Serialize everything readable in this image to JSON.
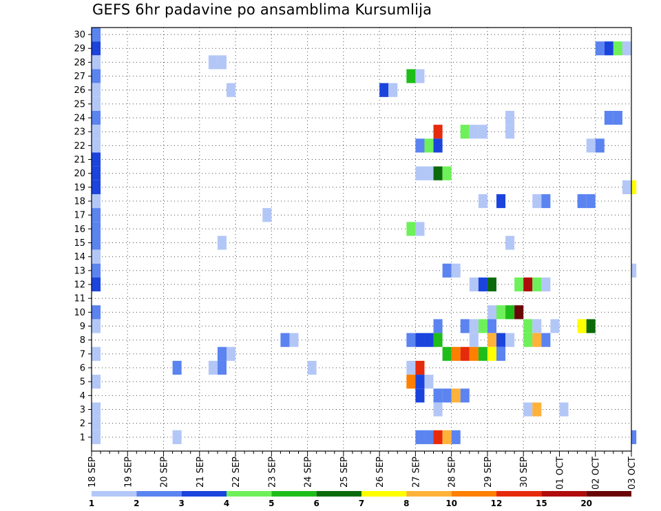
{
  "chart_data": {
    "type": "heatmap",
    "title": "GEFS 6hr padavine po ansamblima Kursumlija",
    "xlabel": "",
    "ylabel": "",
    "ylim": [
      0,
      30
    ],
    "y_ticks": [
      1,
      2,
      3,
      4,
      5,
      6,
      7,
      8,
      9,
      10,
      11,
      12,
      13,
      14,
      15,
      16,
      17,
      18,
      19,
      20,
      21,
      22,
      23,
      24,
      25,
      26,
      27,
      28,
      29,
      30
    ],
    "x_ticks": [
      "18 SEP",
      "19 SEP",
      "20 SEP",
      "21 SEP",
      "22 SEP",
      "23 SEP",
      "24 SEP",
      "25 SEP",
      "26 SEP",
      "27 SEP",
      "28 SEP",
      "29 SEP",
      "30 SEP",
      "01 OCT",
      "02 OCT",
      "03 OCT"
    ],
    "x_unit": "6-hour step from 18 SEP 00Z",
    "x_range": [
      0,
      60
    ],
    "grid": true,
    "legend": {
      "position": "bottom",
      "labels": [
        "1",
        "2",
        "3",
        "4",
        "5",
        "6",
        "7",
        "8",
        "10",
        "12",
        "15",
        "20"
      ],
      "colors": [
        "#b3c7f7",
        "#5b84f0",
        "#1b44dd",
        "#6ef05a",
        "#1ebd1a",
        "#0b6b0b",
        "#ffff00",
        "#ffb23a",
        "#ff7f00",
        "#e62a0c",
        "#b00c0c",
        "#6a0505"
      ]
    },
    "cells": [
      {
        "member": 30,
        "step": 0,
        "level": 2
      },
      {
        "member": 29,
        "step": 0,
        "level": 3
      },
      {
        "member": 28,
        "step": 0,
        "level": 1
      },
      {
        "member": 27,
        "step": 0,
        "level": 2
      },
      {
        "member": 26,
        "step": 0,
        "level": 1
      },
      {
        "member": 25,
        "step": 0,
        "level": 1
      },
      {
        "member": 24,
        "step": 0,
        "level": 2
      },
      {
        "member": 23,
        "step": 0,
        "level": 1
      },
      {
        "member": 22,
        "step": 0,
        "level": 1
      },
      {
        "member": 21,
        "step": 0,
        "level": 3
      },
      {
        "member": 20,
        "step": 0,
        "level": 3
      },
      {
        "member": 19,
        "step": 0,
        "level": 3
      },
      {
        "member": 18,
        "step": 0,
        "level": 1
      },
      {
        "member": 17,
        "step": 0,
        "level": 2
      },
      {
        "member": 16,
        "step": 0,
        "level": 2
      },
      {
        "member": 15,
        "step": 0,
        "level": 2
      },
      {
        "member": 14,
        "step": 0,
        "level": 1
      },
      {
        "member": 13,
        "step": 0,
        "level": 2
      },
      {
        "member": 12,
        "step": 0,
        "level": 3
      },
      {
        "member": 10,
        "step": 0,
        "level": 2
      },
      {
        "member": 9,
        "step": 0,
        "level": 1
      },
      {
        "member": 7,
        "step": 0,
        "level": 1
      },
      {
        "member": 5,
        "step": 0,
        "level": 1
      },
      {
        "member": 3,
        "step": 0,
        "level": 1
      },
      {
        "member": 2,
        "step": 0,
        "level": 1
      },
      {
        "member": 1,
        "step": 0,
        "level": 1
      },
      {
        "member": 29,
        "step": 56,
        "level": 2
      },
      {
        "member": 29,
        "step": 57,
        "level": 3
      },
      {
        "member": 29,
        "step": 58,
        "level": 4
      },
      {
        "member": 29,
        "step": 59,
        "level": 1
      },
      {
        "member": 28,
        "step": 13,
        "level": 1
      },
      {
        "member": 28,
        "step": 14,
        "level": 1
      },
      {
        "member": 27,
        "step": 35,
        "level": 5
      },
      {
        "member": 27,
        "step": 36,
        "level": 1
      },
      {
        "member": 26,
        "step": 15,
        "level": 1
      },
      {
        "member": 26,
        "step": 32,
        "level": 3
      },
      {
        "member": 26,
        "step": 33,
        "level": 1
      },
      {
        "member": 24,
        "step": 46,
        "level": 1
      },
      {
        "member": 24,
        "step": 57,
        "level": 2
      },
      {
        "member": 24,
        "step": 58,
        "level": 2
      },
      {
        "member": 23,
        "step": 38,
        "level": 10
      },
      {
        "member": 23,
        "step": 41,
        "level": 4
      },
      {
        "member": 23,
        "step": 42,
        "level": 1
      },
      {
        "member": 23,
        "step": 43,
        "level": 1
      },
      {
        "member": 23,
        "step": 46,
        "level": 1
      },
      {
        "member": 22,
        "step": 36,
        "level": 2
      },
      {
        "member": 22,
        "step": 37,
        "level": 4
      },
      {
        "member": 22,
        "step": 38,
        "level": 3
      },
      {
        "member": 22,
        "step": 55,
        "level": 1
      },
      {
        "member": 22,
        "step": 56,
        "level": 2
      },
      {
        "member": 20,
        "step": 36,
        "level": 1
      },
      {
        "member": 20,
        "step": 37,
        "level": 1
      },
      {
        "member": 20,
        "step": 38,
        "level": 6
      },
      {
        "member": 20,
        "step": 39,
        "level": 4
      },
      {
        "member": 19,
        "step": 59,
        "level": 1
      },
      {
        "member": 19,
        "step": 60,
        "level": 7
      },
      {
        "member": 18,
        "step": 43,
        "level": 1
      },
      {
        "member": 18,
        "step": 45,
        "level": 3
      },
      {
        "member": 18,
        "step": 49,
        "level": 1
      },
      {
        "member": 18,
        "step": 50,
        "level": 2
      },
      {
        "member": 18,
        "step": 54,
        "level": 2
      },
      {
        "member": 18,
        "step": 55,
        "level": 2
      },
      {
        "member": 17,
        "step": 19,
        "level": 1
      },
      {
        "member": 16,
        "step": 35,
        "level": 4
      },
      {
        "member": 16,
        "step": 36,
        "level": 1
      },
      {
        "member": 15,
        "step": 14,
        "level": 1
      },
      {
        "member": 15,
        "step": 46,
        "level": 1
      },
      {
        "member": 13,
        "step": 39,
        "level": 2
      },
      {
        "member": 13,
        "step": 40,
        "level": 1
      },
      {
        "member": 13,
        "step": 60,
        "level": 1
      },
      {
        "member": 12,
        "step": 42,
        "level": 1
      },
      {
        "member": 12,
        "step": 43,
        "level": 3
      },
      {
        "member": 12,
        "step": 44,
        "level": 6
      },
      {
        "member": 12,
        "step": 47,
        "level": 4
      },
      {
        "member": 12,
        "step": 48,
        "level": 11
      },
      {
        "member": 12,
        "step": 49,
        "level": 4
      },
      {
        "member": 12,
        "step": 50,
        "level": 1
      },
      {
        "member": 10,
        "step": 44,
        "level": 1
      },
      {
        "member": 10,
        "step": 45,
        "level": 4
      },
      {
        "member": 10,
        "step": 46,
        "level": 5
      },
      {
        "member": 10,
        "step": 47,
        "level": 12
      },
      {
        "member": 9,
        "step": 38,
        "level": 2
      },
      {
        "member": 9,
        "step": 41,
        "level": 2
      },
      {
        "member": 9,
        "step": 42,
        "level": 1
      },
      {
        "member": 9,
        "step": 43,
        "level": 4
      },
      {
        "member": 9,
        "step": 44,
        "level": 2
      },
      {
        "member": 9,
        "step": 48,
        "level": 4
      },
      {
        "member": 9,
        "step": 49,
        "level": 1
      },
      {
        "member": 9,
        "step": 51,
        "level": 1
      },
      {
        "member": 9,
        "step": 54,
        "level": 7
      },
      {
        "member": 9,
        "step": 55,
        "level": 6
      },
      {
        "member": 8,
        "step": 21,
        "level": 2
      },
      {
        "member": 8,
        "step": 22,
        "level": 1
      },
      {
        "member": 8,
        "step": 35,
        "level": 2
      },
      {
        "member": 8,
        "step": 36,
        "level": 3
      },
      {
        "member": 8,
        "step": 37,
        "level": 3
      },
      {
        "member": 8,
        "step": 38,
        "level": 5
      },
      {
        "member": 8,
        "step": 42,
        "level": 1
      },
      {
        "member": 8,
        "step": 44,
        "level": 8
      },
      {
        "member": 8,
        "step": 45,
        "level": 3
      },
      {
        "member": 8,
        "step": 46,
        "level": 1
      },
      {
        "member": 8,
        "step": 48,
        "level": 4
      },
      {
        "member": 8,
        "step": 49,
        "level": 8
      },
      {
        "member": 8,
        "step": 50,
        "level": 2
      },
      {
        "member": 7,
        "step": 14,
        "level": 2
      },
      {
        "member": 7,
        "step": 15,
        "level": 1
      },
      {
        "member": 7,
        "step": 39,
        "level": 5
      },
      {
        "member": 7,
        "step": 40,
        "level": 9
      },
      {
        "member": 7,
        "step": 41,
        "level": 10
      },
      {
        "member": 7,
        "step": 42,
        "level": 9
      },
      {
        "member": 7,
        "step": 43,
        "level": 5
      },
      {
        "member": 7,
        "step": 44,
        "level": 7
      },
      {
        "member": 7,
        "step": 45,
        "level": 2
      },
      {
        "member": 6,
        "step": 9,
        "level": 2
      },
      {
        "member": 6,
        "step": 13,
        "level": 1
      },
      {
        "member": 6,
        "step": 14,
        "level": 2
      },
      {
        "member": 6,
        "step": 24,
        "level": 1
      },
      {
        "member": 6,
        "step": 35,
        "level": 1
      },
      {
        "member": 6,
        "step": 36,
        "level": 10
      },
      {
        "member": 5,
        "step": 35,
        "level": 9
      },
      {
        "member": 5,
        "step": 36,
        "level": 3
      },
      {
        "member": 5,
        "step": 37,
        "level": 1
      },
      {
        "member": 4,
        "step": 36,
        "level": 3
      },
      {
        "member": 4,
        "step": 38,
        "level": 2
      },
      {
        "member": 4,
        "step": 39,
        "level": 2
      },
      {
        "member": 4,
        "step": 40,
        "level": 8
      },
      {
        "member": 4,
        "step": 41,
        "level": 2
      },
      {
        "member": 3,
        "step": 38,
        "level": 1
      },
      {
        "member": 3,
        "step": 48,
        "level": 1
      },
      {
        "member": 3,
        "step": 49,
        "level": 8
      },
      {
        "member": 3,
        "step": 52,
        "level": 1
      },
      {
        "member": 1,
        "step": 9,
        "level": 1
      },
      {
        "member": 1,
        "step": 36,
        "level": 2
      },
      {
        "member": 1,
        "step": 37,
        "level": 2
      },
      {
        "member": 1,
        "step": 38,
        "level": 10
      },
      {
        "member": 1,
        "step": 39,
        "level": 8
      },
      {
        "member": 1,
        "step": 40,
        "level": 2
      },
      {
        "member": 1,
        "step": 60,
        "level": 2
      }
    ]
  }
}
